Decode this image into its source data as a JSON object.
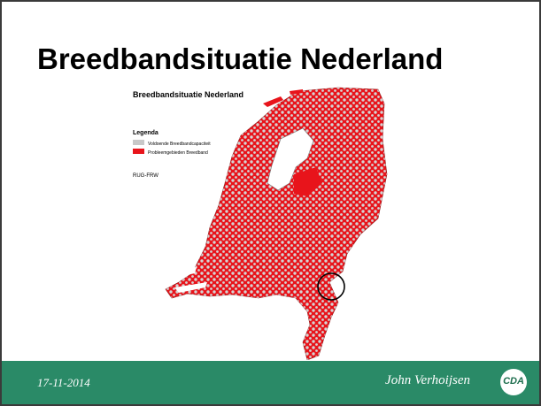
{
  "slide": {
    "title": "Breedbandsituatie Nederland",
    "date": "17-11-2014",
    "author": "John Verhoijsen",
    "logo_text": "CDA"
  },
  "map": {
    "title": "Breedbandsituatie Nederland",
    "legend_title": "Legenda",
    "legend": [
      {
        "label": "Voldoende Breedbandcapaciteit",
        "color": "#c8c8c8"
      },
      {
        "label": "Probleemgebieden Breedband",
        "color": "#e8141b"
      }
    ],
    "source": "RUG-FRW"
  },
  "colors": {
    "footer": "#2a8a67",
    "problem": "#e8141b",
    "sufficient": "#c8c8c8"
  }
}
